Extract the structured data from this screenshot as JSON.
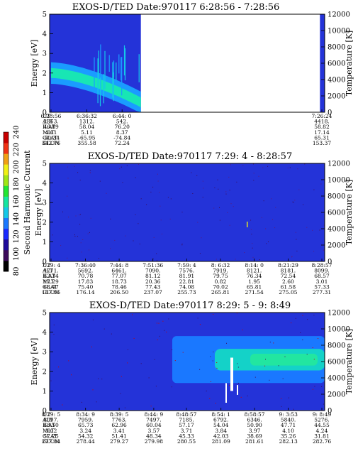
{
  "colorbar": {
    "label": "Second Harmonic Current",
    "ticks": [
      "80",
      "100",
      "120",
      "140",
      "160",
      "180",
      "200",
      "220",
      "240"
    ],
    "range": [
      80,
      240
    ],
    "colors": [
      "#000000",
      "#3c0a5a",
      "#1e0a9a",
      "#1a2aff",
      "#1a78ff",
      "#14c8e8",
      "#14e6a0",
      "#22e632",
      "#a0e614",
      "#f0f014",
      "#f0a014",
      "#f03214",
      "#c80000"
    ]
  },
  "row_labels": [
    "UT",
    "ALT",
    "ILAT",
    "MLT",
    "GLAT",
    "GLON"
  ],
  "panels": [
    {
      "title": "EXOS-D/TED   Date:970117  6:28:56 - 7:28:56",
      "y_label": "Energy [eV]",
      "y_ticks": [
        "0",
        "1",
        "2",
        "3",
        "4",
        "5"
      ],
      "right_label": "Temperature [K]",
      "right_ticks": [
        "0",
        "2000",
        "4000",
        "6000",
        "8000",
        "10000",
        "12000"
      ],
      "columns": [
        {
          "UT": "6:28:56",
          "ALT": "2363.",
          "ILAT": "46.89",
          "MLT": "4.61",
          "GLAT": "-50.34",
          "GLON": "342.76"
        },
        {
          "UT": "6:36:32",
          "ALT": "1312.",
          "ILAT": "58.04",
          "MLT": "5.11",
          "GLAT": "-65.95",
          "GLON": "355.58"
        },
        {
          "UT": "6:44: 0",
          "ALT": "542.",
          "ILAT": "76.20",
          "MLT": "8.37",
          "GLAT": "-74.84",
          "GLON": "72.24"
        },
        {
          "UT": "7:26:24",
          "ALT": "4418.",
          "ILAT": "58.82",
          "MLT": "17.14",
          "GLAT": "65.31",
          "GLON": "153.37"
        }
      ]
    },
    {
      "title": "EXOS-D/TED   Date:970117  7:29: 4 - 8:28:57",
      "y_label": "Energy [eV]",
      "y_ticks": [
        "0",
        "1",
        "2",
        "3",
        "4",
        "5"
      ],
      "right_label": "Temperature [K]",
      "right_ticks": [
        "0",
        "2000",
        "4000",
        "6000",
        "8000",
        "10000",
        "12000"
      ],
      "columns": [
        {
          "UT": "7:29: 4",
          "ALT": "4771.",
          "ILAT": "62.34",
          "MLT": "17.29",
          "GLAT": "68.47",
          "GLON": "157.55"
        },
        {
          "UT": "7:36:40",
          "ALT": "5692.",
          "ILAT": "70.78",
          "MLT": "17.83",
          "GLAT": "75.40",
          "GLON": "176.14"
        },
        {
          "UT": "7:44: 8",
          "ALT": "6461.",
          "ILAT": "77.07",
          "MLT": "18.73",
          "GLAT": "78.46",
          "GLON": "206.50"
        },
        {
          "UT": "7:51:36",
          "ALT": "7090.",
          "ILAT": "81.12",
          "MLT": "20.36",
          "GLAT": "77.43",
          "GLON": "237.07"
        },
        {
          "UT": "7:59: 4",
          "ALT": "7576.",
          "ILAT": "81.91",
          "MLT": "22.81",
          "GLAT": "74.08",
          "GLON": "255.73"
        },
        {
          "UT": "8: 6:32",
          "ALT": "7919.",
          "ILAT": "79.75",
          "MLT": "0.82",
          "GLAT": "70.02",
          "GLON": "265.81"
        },
        {
          "UT": "8:14: 0",
          "ALT": "8121.",
          "ILAT": "76.34",
          "MLT": "1.95",
          "GLAT": "65.81",
          "GLON": "271.54"
        },
        {
          "UT": "8:21:29",
          "ALT": "8181.",
          "ILAT": "72.54",
          "MLT": "2.60",
          "GLAT": "61.58",
          "GLON": "275.05"
        },
        {
          "UT": "8:28:57",
          "ALT": "8099.",
          "ILAT": "68.57",
          "MLT": "3.01",
          "GLAT": "57.33",
          "GLON": "277.31"
        }
      ]
    },
    {
      "title": "EXOS-D/TED   Date:970117  8:29: 5 - 9: 8:49",
      "y_label": "Energy [eV]",
      "y_ticks": [
        "0",
        "1",
        "2",
        "3",
        "4",
        "5"
      ],
      "right_label": "Temperature [K]",
      "right_ticks": [
        "0",
        "2000",
        "4000",
        "6000",
        "8000",
        "10000",
        "12000"
      ],
      "columns": [
        {
          "UT": "8:29: 5",
          "ALT": "8097.",
          "ILAT": "68.50",
          "MLT": "3.02",
          "GLAT": "57.25",
          "GLON": "277.34"
        },
        {
          "UT": "8:34: 9",
          "ALT": "7959.",
          "ILAT": "65.73",
          "MLT": "3.24",
          "GLAT": "54.32",
          "GLON": "278.44"
        },
        {
          "UT": "8:39: 5",
          "ALT": "7763.",
          "ILAT": "62.96",
          "MLT": "3.41",
          "GLAT": "51.41",
          "GLON": "279.27"
        },
        {
          "UT": "8:44: 9",
          "ALT": "7497.",
          "ILAT": "60.04",
          "MLT": "3.57",
          "GLAT": "48.34",
          "GLON": "279.98"
        },
        {
          "UT": "8:48:57",
          "ALT": "7185.",
          "ILAT": "57.17",
          "MLT": "3.71",
          "GLAT": "45.33",
          "GLON": "280.55"
        },
        {
          "UT": "8:54: 1",
          "ALT": "6792.",
          "ILAT": "54.04",
          "MLT": "3.84",
          "GLAT": "42.03",
          "GLON": "281.09"
        },
        {
          "UT": "8:58:57",
          "ALT": "6346.",
          "ILAT": "50.90",
          "MLT": "3.97",
          "GLAT": "38.69",
          "GLON": "281.61"
        },
        {
          "UT": "9: 3:53",
          "ALT": "5840.",
          "ILAT": "47.71",
          "MLT": "4.10",
          "GLAT": "35.26",
          "GLON": "282.13"
        },
        {
          "UT": "9: 8:49",
          "ALT": "5276.",
          "ILAT": "44.55",
          "MLT": "4.24",
          "GLAT": "31.81",
          "GLON": "282.76"
        }
      ]
    }
  ],
  "chart_data": [
    {
      "type": "heatmap",
      "title": "EXOS-D/TED   Date:970117  6:28:56 - 7:28:56",
      "ylabel": "Energy [eV]",
      "ylim": [
        0,
        5
      ],
      "y2label": "Temperature [K]",
      "y2lim": [
        0,
        12000
      ],
      "x": [
        "6:28:56",
        "6:36:32",
        "6:44: 0",
        "7:26:24"
      ],
      "data_gap": [
        "6:48:00",
        "7:26:00"
      ],
      "bands": [
        {
          "t_start": "6:28:56",
          "t_end": "6:48:00",
          "energy_center_start": 2.0,
          "energy_center_end": 0.5,
          "level": "high"
        },
        {
          "t_start": "6:28:56",
          "t_end": "6:38:00",
          "energy_center_start": 1.4,
          "energy_center_end": 1.4,
          "level": "medium"
        }
      ]
    },
    {
      "type": "heatmap",
      "title": "EXOS-D/TED   Date:970117  7:29: 4 - 8:28:57",
      "ylabel": "Energy [eV]",
      "ylim": [
        0,
        5
      ],
      "y2label": "Temperature [K]",
      "y2lim": [
        0,
        12000
      ],
      "x": [
        "7:29: 4",
        "7:36:40",
        "7:44: 8",
        "7:51:36",
        "7:59: 4",
        "8: 6:32",
        "8:14: 0",
        "8:21:29",
        "8:28:57"
      ],
      "bands": []
    },
    {
      "type": "heatmap",
      "title": "EXOS-D/TED   Date:970117  8:29: 5 - 9: 8:49",
      "ylabel": "Energy [eV]",
      "ylim": [
        0,
        5
      ],
      "y2label": "Temperature [K]",
      "y2lim": [
        0,
        12000
      ],
      "x": [
        "8:29: 5",
        "8:34: 9",
        "8:39: 5",
        "8:44: 9",
        "8:48:57",
        "8:54: 1",
        "8:58:57",
        "9: 3:53",
        "9: 8:49"
      ],
      "bands": [
        {
          "t_start": "8:48:57",
          "t_end": "9: 8:49",
          "energy_center_start": 2.6,
          "energy_center_end": 2.4,
          "level": "high"
        }
      ]
    }
  ]
}
